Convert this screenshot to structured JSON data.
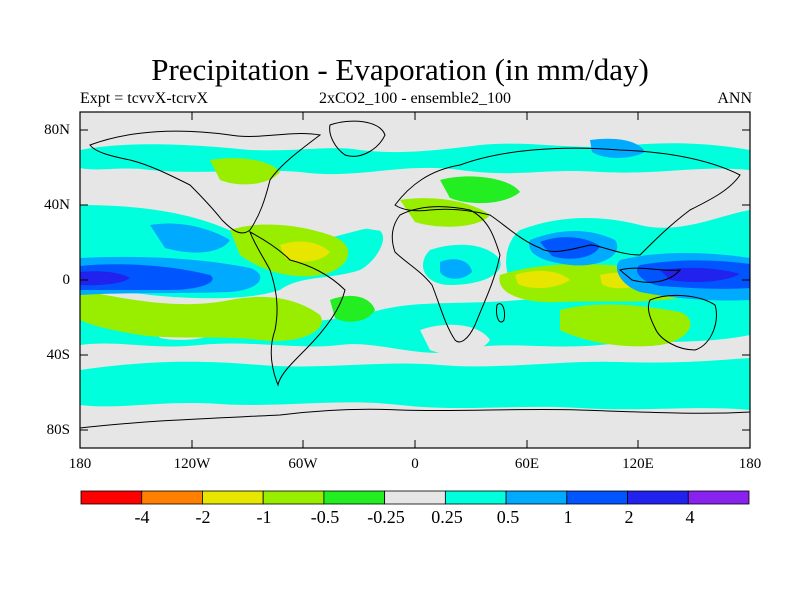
{
  "header": {
    "title": "Precipitation - Evaporation (in mm/day)",
    "experiment": "Expt = tcvvX-tcrvX",
    "run": "2xCO2_100 - ensemble2_100",
    "season": "ANN"
  },
  "map": {
    "projection": "cylindrical equidistant",
    "lat_labels": [
      "80N",
      "40N",
      "0",
      "40S",
      "80S"
    ],
    "lon_labels": [
      "180",
      "120W",
      "60W",
      "0",
      "60E",
      "120E",
      "180"
    ],
    "background_color": "#e6e6e6",
    "frame_color": "#000000"
  },
  "colorbar": {
    "colors": [
      "#ff0000",
      "#ff8000",
      "#e6e600",
      "#99ee00",
      "#22ee22",
      "#e6e6e6",
      "#00ffdd",
      "#00aaff",
      "#0055ff",
      "#2222ee",
      "#8822ee"
    ],
    "labels": [
      "-4",
      "-2",
      "-1",
      "-0.5",
      "-0.25",
      "0.25",
      "0.5",
      "1",
      "2",
      "4"
    ]
  }
}
